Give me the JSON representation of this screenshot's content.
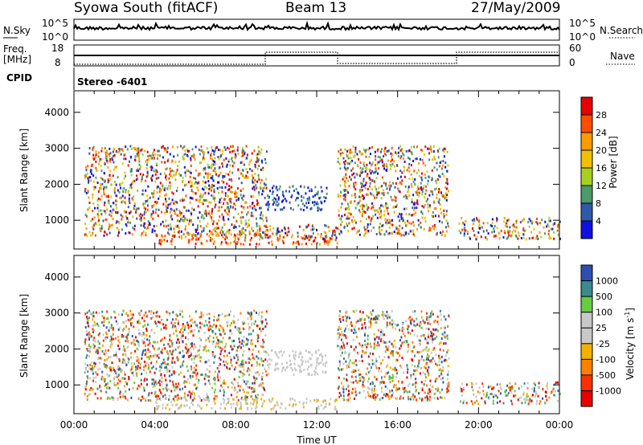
{
  "header": {
    "station": "Syowa South (fitACF)",
    "beam": "Beam 13",
    "date": "27/May/2009"
  },
  "panels": {
    "nsky": {
      "label": "N.Sky",
      "right_label": "N.Search",
      "left_ticks": [
        "10^5",
        "10^0"
      ],
      "right_ticks": [
        "10^5",
        "10^0"
      ]
    },
    "freq": {
      "label_line1": "Freq.",
      "label_line2": "[MHz]",
      "right_label": "Nave",
      "left_ticks": [
        "18",
        "8"
      ],
      "right_ticks": [
        "60",
        "0"
      ]
    },
    "cpid": {
      "label": "CPID",
      "value": "Stereo  -6401"
    }
  },
  "chart_data": [
    {
      "type": "heatmap",
      "name": "power",
      "ylabel": "Slant Range [km]",
      "xlim": [
        "00:00",
        "24:00"
      ],
      "ylim": [
        200,
        4600
      ],
      "yticks": [
        1000,
        2000,
        3000,
        4000
      ],
      "colorbar": {
        "label": "Power [dB]",
        "ticks": [
          "28",
          "24",
          "20",
          "16",
          "12",
          "8",
          "4"
        ],
        "colors": [
          "#e60000",
          "#ff4d00",
          "#ff9a00",
          "#f2c000",
          "#a8d020",
          "#4a9a6a",
          "#2f5aa8",
          "#1010e0"
        ]
      },
      "echo_regions": [
        {
          "t0": 0.5,
          "t1": 9.5,
          "r0": 600,
          "r1": 3100,
          "level": "scatter, mixed power"
        },
        {
          "t0": 4.0,
          "t1": 13.0,
          "r0": 350,
          "r1": 650,
          "level": "strong 20-28 dB"
        },
        {
          "t0": 9.5,
          "t1": 12.5,
          "r0": 1300,
          "r1": 2000,
          "level": "weak 4-8 dB"
        },
        {
          "t0": 9.0,
          "t1": 13.0,
          "r0": 500,
          "r1": 900,
          "level": "mixed"
        },
        {
          "t0": 13.0,
          "t1": 18.5,
          "r0": 600,
          "r1": 3100,
          "level": "scatter, mixed power"
        },
        {
          "t0": 19.0,
          "t1": 24.0,
          "r0": 500,
          "r1": 1100,
          "level": "weak-moderate"
        }
      ]
    },
    {
      "type": "heatmap",
      "name": "velocity",
      "xlabel": "Time UT",
      "ylabel": "Slant Range [km]",
      "xlim": [
        "00:00",
        "24:00"
      ],
      "ylim": [
        200,
        4600
      ],
      "xticks": [
        "00:00",
        "04:00",
        "08:00",
        "12:00",
        "16:00",
        "20:00",
        "00:00"
      ],
      "yticks": [
        1000,
        2000,
        3000,
        4000
      ],
      "colorbar": {
        "label": "Velocity",
        "unit_base": "[m s",
        "unit_exp": "-1",
        "unit_close": "]",
        "ticks": [
          "1000",
          "500",
          "100",
          "25",
          "-25",
          "-100",
          "-500",
          "-1000"
        ],
        "colors": [
          "#2f4fb0",
          "#3a8a8a",
          "#66cc44",
          "#c8c8c8",
          "#c8c8c8",
          "#f2b000",
          "#ff8000",
          "#ff3000",
          "#e60000"
        ]
      },
      "echo_regions": [
        {
          "t0": 0.5,
          "t1": 9.5,
          "r0": 600,
          "r1": 3100,
          "level": "scatter, mixed velocity"
        },
        {
          "t0": 4.0,
          "t1": 13.0,
          "r0": 350,
          "r1": 650,
          "level": "negative -100 to -25"
        },
        {
          "t0": 9.5,
          "t1": 12.5,
          "r0": 1300,
          "r1": 2000,
          "level": "near zero (ground scatter)"
        },
        {
          "t0": 13.0,
          "t1": 18.5,
          "r0": 600,
          "r1": 3100,
          "level": "scatter, mixed velocity"
        },
        {
          "t0": 19.0,
          "t1": 24.0,
          "r0": 500,
          "r1": 1100,
          "level": "mixed"
        }
      ]
    }
  ]
}
